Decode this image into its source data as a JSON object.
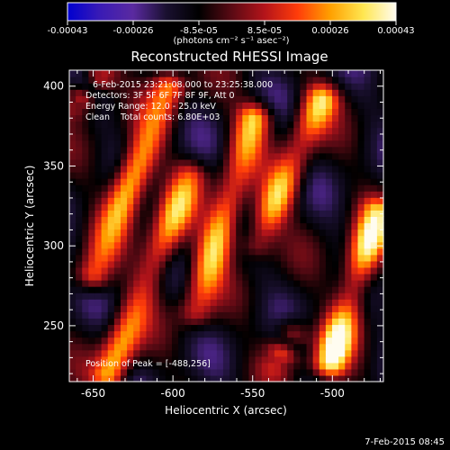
{
  "chart_data": {
    "type": "heatmap",
    "title": "Reconstructed RHESSI Image",
    "xlabel": "Heliocentric X (arcsec)",
    "ylabel": "Heliocentric Y (arcsec)",
    "xlim": [
      -665,
      -468
    ],
    "ylim": [
      215,
      410
    ],
    "xticks": [
      "-650",
      "-600",
      "-550",
      "-500"
    ],
    "yticks": [
      "250",
      "300",
      "350",
      "400"
    ],
    "colorbar": {
      "min": -0.00043,
      "max": 0.00043,
      "ticks": [
        "-0.00043",
        "-0.00026",
        "-8.5e-05",
        "8.5e-05",
        "0.00026",
        "0.00043"
      ],
      "units_label": "(photons cm⁻² s⁻¹ asec⁻²)",
      "colors": [
        "#0000d0",
        "#3a1bb5",
        "#5a2aa0",
        "#1a1030",
        "#000000",
        "#5a0a14",
        "#b4141a",
        "#ff3c0a",
        "#ffa000",
        "#ffe650",
        "#fffcf0"
      ]
    },
    "annotations": {
      "time_range": "6-Feb-2015 23:21:08.000 to 23:25:38.000",
      "detectors": "Detectors: 3F 5F 6F 7F 8F 9F, Att 0",
      "energy_range": "Energy Range: 12.0 - 25.0 keV",
      "method_counts": "Clean    Total counts: 6.80E+03",
      "peak": "Position of Peak = [-488,256]"
    },
    "bright_ridges": [
      {
        "x_start": -650,
        "y_start": 283,
        "x_end": -603,
        "y_end": 400,
        "peak_relative": 0.9
      },
      {
        "x_start": -640,
        "y_start": 220,
        "x_end": -590,
        "y_end": 343,
        "peak_relative": 0.75
      },
      {
        "x_start": -586,
        "y_start": 260,
        "x_end": -550,
        "y_end": 380,
        "peak_relative": 0.85
      },
      {
        "x_start": -548,
        "y_start": 303,
        "x_end": -508,
        "y_end": 392,
        "peak_relative": 0.8
      },
      {
        "x_start": -502,
        "y_start": 228,
        "x_end": -473,
        "y_end": 320,
        "peak_relative": 1.0
      },
      {
        "x_start": -536,
        "y_start": 226,
        "x_end": -526,
        "y_end": 245,
        "peak_relative": 0.45
      },
      {
        "x_start": -660,
        "y_start": 390,
        "x_end": -645,
        "y_end": 408,
        "peak_relative": 0.5
      }
    ]
  },
  "footer_date": "7-Feb-2015 08:45"
}
